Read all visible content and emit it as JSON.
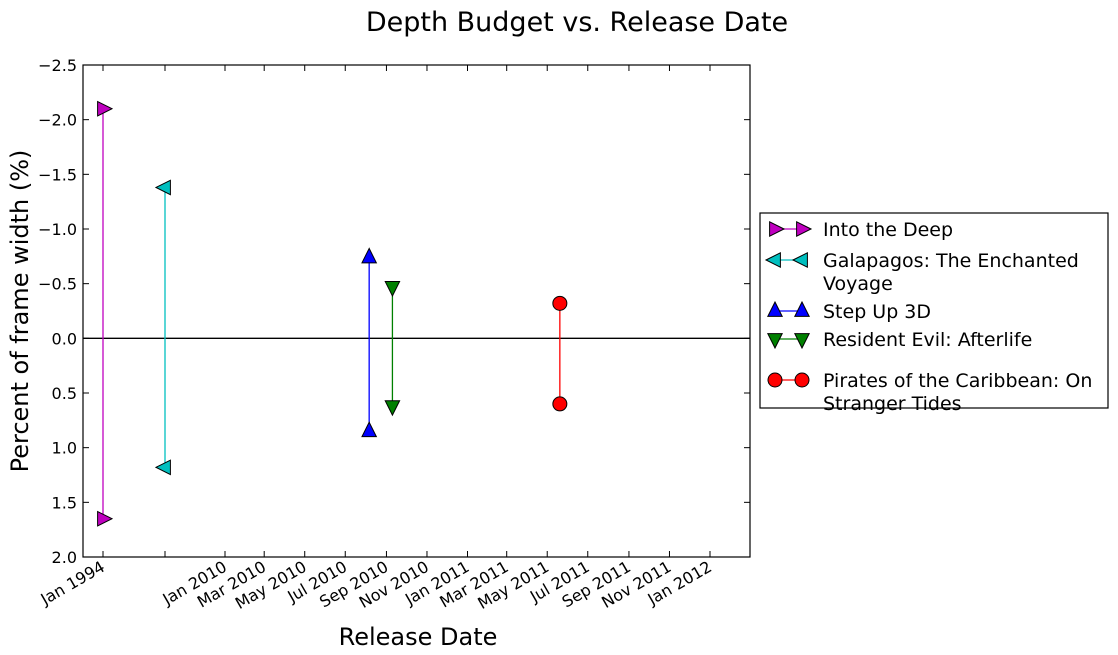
{
  "chart_data": {
    "type": "scatter",
    "title": "Depth Budget vs. Release Date",
    "xlabel": "Release Date",
    "ylabel": "Percent of frame width (%)",
    "y_inverted": true,
    "ylim": [
      2.0,
      -2.5
    ],
    "yticks": [
      "−2.5",
      "−2.0",
      "−1.5",
      "−1.0",
      "−0.5",
      "0.0",
      "0.5",
      "1.0",
      "1.5",
      "2.0"
    ],
    "ytick_values": [
      -2.5,
      -2.0,
      -1.5,
      -1.0,
      -0.5,
      0.0,
      0.5,
      1.0,
      1.5,
      2.0
    ],
    "xticks": [
      "Jan 1994",
      "Jan 2010",
      "Mar 2010",
      "May 2010",
      "Jul 2010",
      "Sep 2010",
      "Nov 2010",
      "Jan 2011",
      "Mar 2011",
      "May 2011",
      "Jul 2011",
      "Sep 2011",
      "Nov 2011",
      "Jan 2012"
    ],
    "xtick_dates": [
      "1994-01-01",
      "2010-01-01",
      "2010-03-01",
      "2010-05-01",
      "2010-07-01",
      "2010-09-01",
      "2010-11-01",
      "2011-01-01",
      "2011-03-01",
      "2011-05-01",
      "2011-07-01",
      "2011-09-01",
      "2011-11-01",
      "2012-01-01"
    ],
    "axis_note": "x axis is broken/non-linear: the 1994 tick and the early titles are compressed at the left",
    "reference_line_y": 0.0,
    "legend_position": "outside right",
    "series": [
      {
        "name": "Into the Deep",
        "color": "#bf00bf",
        "marker": "triangle-right",
        "x": "1994",
        "y": [
          -2.1,
          1.65
        ]
      },
      {
        "name": "Galapagos: The Enchanted Voyage",
        "color": "#00bfbf",
        "marker": "triangle-left",
        "x": "1999",
        "y": [
          -1.38,
          1.18
        ]
      },
      {
        "name": "Step Up 3D",
        "color": "#0000ff",
        "marker": "triangle-up",
        "x": "2010-08-06",
        "y": [
          -0.74,
          0.85
        ]
      },
      {
        "name": "Resident Evil: Afterlife",
        "color": "#008000",
        "marker": "triangle-down",
        "x": "2010-09-10",
        "y": [
          -0.47,
          0.62
        ]
      },
      {
        "name": "Pirates of the Caribbean: On Stranger Tides",
        "color": "#ff0000",
        "marker": "circle",
        "x": "2011-05-20",
        "y": [
          -0.32,
          0.6
        ]
      }
    ],
    "legend_labels": [
      [
        "Into the Deep"
      ],
      [
        "Galapagos: The Enchanted",
        "Voyage"
      ],
      [
        "Step Up 3D"
      ],
      [
        "Resident Evil: Afterlife"
      ],
      [
        "Pirates of the Caribbean: On",
        "Stranger Tides"
      ]
    ]
  }
}
